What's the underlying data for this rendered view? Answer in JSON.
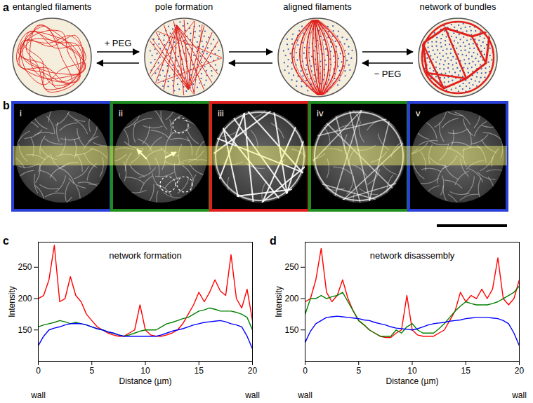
{
  "figure": {
    "a": {
      "label": "a",
      "stages": [
        "entangled filaments",
        "pole formation",
        "aligned filaments",
        "network of bundles"
      ],
      "forward_label": "+ PEG",
      "reverse_label": "− PEG"
    },
    "b": {
      "label": "b",
      "images": [
        {
          "label": "i",
          "color": "#2a3fd6"
        },
        {
          "label": "ii",
          "color": "#1e8c1e"
        },
        {
          "label": "iii",
          "color": "#e01e1e"
        },
        {
          "label": "iv",
          "color": "#1e8c1e"
        },
        {
          "label": "v",
          "color": "#2a3fd6"
        }
      ]
    }
  },
  "chart_data": [
    {
      "type": "line",
      "panel": "c",
      "title": "network formation",
      "x_label": "Distance (µm)",
      "y_label": "Intensity",
      "x": [
        0,
        0.5,
        1,
        1.5,
        2,
        2.5,
        3,
        3.5,
        4,
        4.5,
        5,
        5.5,
        6,
        6.5,
        7,
        7.5,
        8,
        8.5,
        9,
        9.5,
        10,
        10.5,
        11,
        11.5,
        12,
        12.5,
        13,
        13.5,
        14,
        14.5,
        15,
        15.5,
        16,
        16.5,
        17,
        17.5,
        18,
        18.5,
        19,
        19.5,
        20
      ],
      "series": [
        {
          "color": "red",
          "values": [
            200,
            205,
            230,
            285,
            195,
            200,
            235,
            205,
            195,
            175,
            165,
            155,
            150,
            145,
            142,
            140,
            140,
            145,
            150,
            190,
            150,
            142,
            140,
            140,
            142,
            145,
            150,
            160,
            175,
            190,
            210,
            195,
            210,
            230,
            212,
            205,
            270,
            200,
            185,
            215,
            165
          ]
        },
        {
          "color": "green",
          "values": [
            155,
            158,
            160,
            162,
            165,
            163,
            160,
            162,
            160,
            158,
            155,
            152,
            150,
            147,
            145,
            142,
            140,
            142,
            145,
            148,
            150,
            150,
            150,
            155,
            160,
            162,
            165,
            168,
            170,
            175,
            180,
            182,
            185,
            183,
            180,
            180,
            180,
            178,
            175,
            170,
            150
          ]
        },
        {
          "color": "blue",
          "values": [
            125,
            140,
            150,
            153,
            155,
            158,
            160,
            160,
            160,
            158,
            155,
            152,
            150,
            147,
            145,
            142,
            140,
            140,
            140,
            140,
            140,
            140,
            140,
            142,
            145,
            148,
            150,
            152,
            155,
            158,
            160,
            162,
            163,
            164,
            165,
            163,
            160,
            158,
            155,
            140,
            120
          ]
        }
      ],
      "xlim": [
        0,
        20
      ],
      "xticks": [
        0,
        5,
        10,
        15,
        20
      ],
      "ylim": [
        100,
        290
      ],
      "yticks": [
        150,
        200,
        250
      ],
      "annotations": [
        {
          "x": 0,
          "text": "wall"
        },
        {
          "x": 20,
          "text": "wall"
        }
      ]
    },
    {
      "type": "line",
      "panel": "d",
      "title": "network disassembly",
      "x_label": "Distance (µm)",
      "y_label": "Intensity",
      "x": [
        0,
        0.5,
        1,
        1.5,
        2,
        2.5,
        3,
        3.5,
        4,
        4.5,
        5,
        5.5,
        6,
        6.5,
        7,
        7.5,
        8,
        8.5,
        9,
        9.5,
        10,
        10.5,
        11,
        11.5,
        12,
        12.5,
        13,
        13.5,
        14,
        14.5,
        15,
        15.5,
        16,
        16.5,
        17,
        17.5,
        18,
        18.5,
        19,
        19.5,
        20
      ],
      "series": [
        {
          "color": "red",
          "values": [
            195,
            200,
            230,
            280,
            210,
            195,
            205,
            230,
            200,
            180,
            165,
            158,
            150,
            145,
            140,
            138,
            138,
            145,
            150,
            205,
            150,
            142,
            140,
            140,
            140,
            145,
            150,
            165,
            180,
            210,
            195,
            205,
            200,
            215,
            200,
            215,
            265,
            200,
            190,
            200,
            230
          ]
        },
        {
          "color": "green",
          "values": [
            175,
            200,
            200,
            205,
            200,
            203,
            205,
            210,
            195,
            180,
            165,
            158,
            150,
            145,
            140,
            140,
            140,
            150,
            145,
            155,
            160,
            150,
            145,
            145,
            145,
            152,
            160,
            170,
            180,
            188,
            195,
            192,
            190,
            190,
            190,
            192,
            195,
            200,
            205,
            210,
            220
          ]
        },
        {
          "color": "blue",
          "values": [
            130,
            148,
            160,
            165,
            170,
            171,
            172,
            171,
            170,
            169,
            168,
            166,
            165,
            162,
            160,
            158,
            155,
            153,
            152,
            151,
            150,
            152,
            155,
            158,
            160,
            161,
            162,
            164,
            165,
            166,
            168,
            169,
            170,
            170,
            170,
            169,
            168,
            165,
            160,
            145,
            125
          ]
        }
      ],
      "xlim": [
        0,
        20
      ],
      "xticks": [
        0,
        5,
        10,
        15,
        20
      ],
      "ylim": [
        100,
        290
      ],
      "yticks": [
        150,
        200,
        250
      ],
      "annotations": [
        {
          "x": 0,
          "text": "wall"
        },
        {
          "x": 20,
          "text": "wall"
        }
      ]
    }
  ]
}
